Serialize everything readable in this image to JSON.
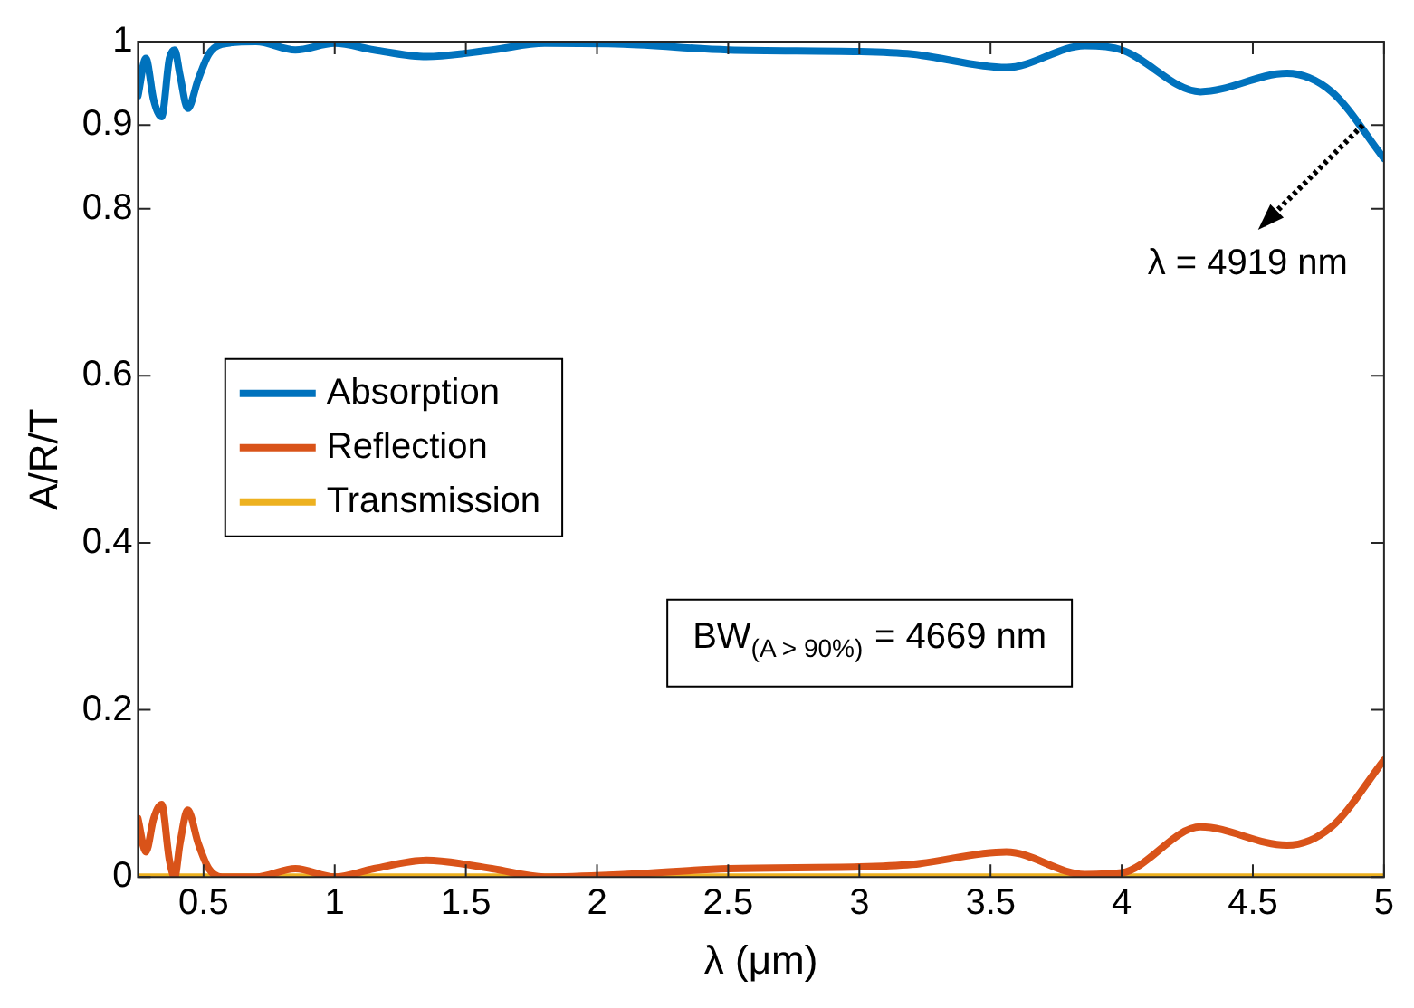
{
  "chart_data": {
    "type": "line",
    "xlabel": "λ (μm)",
    "ylabel": "A/R/T",
    "xlim": [
      0.25,
      5
    ],
    "xticks": [
      0.5,
      1,
      1.5,
      2,
      2.5,
      3,
      3.5,
      4,
      4.5,
      5
    ],
    "ylim": [
      0,
      1
    ],
    "yticks": [
      0,
      0.2,
      0.4,
      0.6,
      0.8,
      0.9,
      1
    ],
    "grid": false,
    "legend": "left",
    "marker": "none",
    "line_style": "solid",
    "annotations": [
      {
        "text": "λ = 4919 nm",
        "x": 4.919,
        "y": 0.9
      },
      "BW$_{(A > 90%)}$ = 4669 nm"
    ],
    "series": [
      {
        "name": "Absorption",
        "color": "#0072bd",
        "x": [
          0.25,
          0.28,
          0.31,
          0.34,
          0.37,
          0.39,
          0.41,
          0.44,
          0.48,
          0.52,
          0.57,
          0.7,
          0.85,
          1.0,
          1.15,
          1.35,
          1.6,
          1.8,
          2.1,
          2.5,
          3.0,
          3.2,
          3.56,
          3.86,
          4.0,
          4.3,
          4.63,
          4.8,
          5.0
        ],
        "values": [
          0.935,
          0.98,
          0.93,
          0.91,
          0.98,
          0.99,
          0.96,
          0.92,
          0.955,
          0.985,
          0.997,
          1,
          0.99,
          0.998,
          0.99,
          0.982,
          0.99,
          0.998,
          0.997,
          0.99,
          0.988,
          0.985,
          0.969,
          0.995,
          0.99,
          0.94,
          0.962,
          0.94,
          0.86
        ]
      },
      {
        "name": "Reflection",
        "color": "#d95319",
        "x": [
          0.25,
          0.28,
          0.31,
          0.34,
          0.37,
          0.39,
          0.41,
          0.44,
          0.48,
          0.52,
          0.57,
          0.7,
          0.85,
          1.0,
          1.15,
          1.35,
          1.6,
          1.8,
          2.1,
          2.5,
          3.0,
          3.2,
          3.56,
          3.86,
          4.0,
          4.3,
          4.63,
          4.8,
          5.0
        ],
        "values": [
          0.07,
          0.03,
          0.07,
          0.087,
          0.02,
          0,
          0.04,
          0.08,
          0.04,
          0.01,
          0,
          0,
          0.01,
          0,
          0.01,
          0.02,
          0.01,
          0,
          0.003,
          0.01,
          0.012,
          0.015,
          0.03,
          0.003,
          0.005,
          0.06,
          0.038,
          0.06,
          0.14
        ]
      },
      {
        "name": "Transmission",
        "color": "#edb120",
        "x": [
          0.25,
          1,
          2,
          3,
          4,
          5
        ],
        "values": [
          0,
          0,
          0,
          0,
          0,
          0
        ]
      }
    ]
  }
}
